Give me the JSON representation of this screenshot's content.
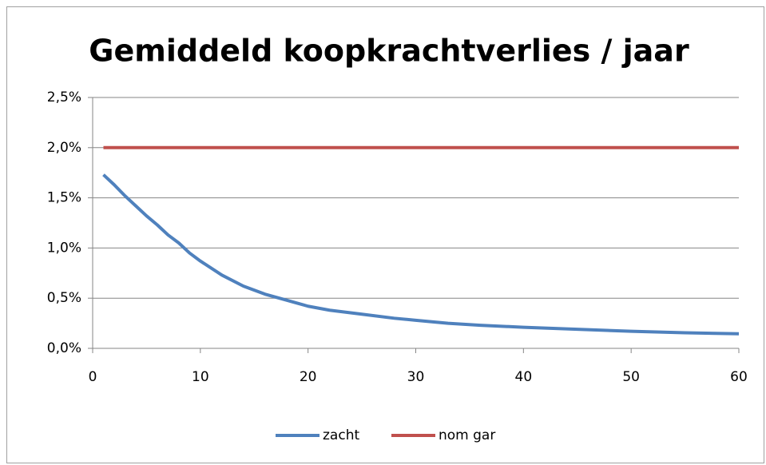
{
  "chart_data": {
    "type": "line",
    "title": "Gemiddeld koopkrachtverlies / jaar",
    "x": [
      1,
      2,
      3,
      4,
      5,
      6,
      7,
      8,
      9,
      10,
      12,
      14,
      16,
      18,
      20,
      22,
      25,
      28,
      30,
      33,
      36,
      40,
      45,
      50,
      55,
      60
    ],
    "series": [
      {
        "name": "zacht",
        "color": "#4f81bd",
        "values": [
          1.73,
          1.63,
          1.52,
          1.42,
          1.32,
          1.23,
          1.13,
          1.05,
          0.95,
          0.87,
          0.73,
          0.62,
          0.54,
          0.48,
          0.42,
          0.38,
          0.34,
          0.3,
          0.28,
          0.25,
          0.23,
          0.21,
          0.19,
          0.17,
          0.155,
          0.145
        ]
      },
      {
        "name": "nom gar",
        "color": "#c0504d",
        "values": [
          2,
          2,
          2,
          2,
          2,
          2,
          2,
          2,
          2,
          2,
          2,
          2,
          2,
          2,
          2,
          2,
          2,
          2,
          2,
          2,
          2,
          2,
          2,
          2,
          2,
          2
        ]
      }
    ],
    "xlim": [
      0,
      60
    ],
    "xticks": [
      0,
      10,
      20,
      30,
      40,
      50,
      60
    ],
    "ylim": [
      0,
      2.5
    ],
    "yticks": [
      {
        "value": 0,
        "label": "0,0%"
      },
      {
        "value": 0.5,
        "label": "0,5%"
      },
      {
        "value": 1,
        "label": "1,0%"
      },
      {
        "value": 1.5,
        "label": "1,5%"
      },
      {
        "value": 2,
        "label": "2,0%"
      },
      {
        "value": 2.5,
        "label": "2,5%"
      }
    ],
    "grid": true,
    "legend": "bottom"
  }
}
